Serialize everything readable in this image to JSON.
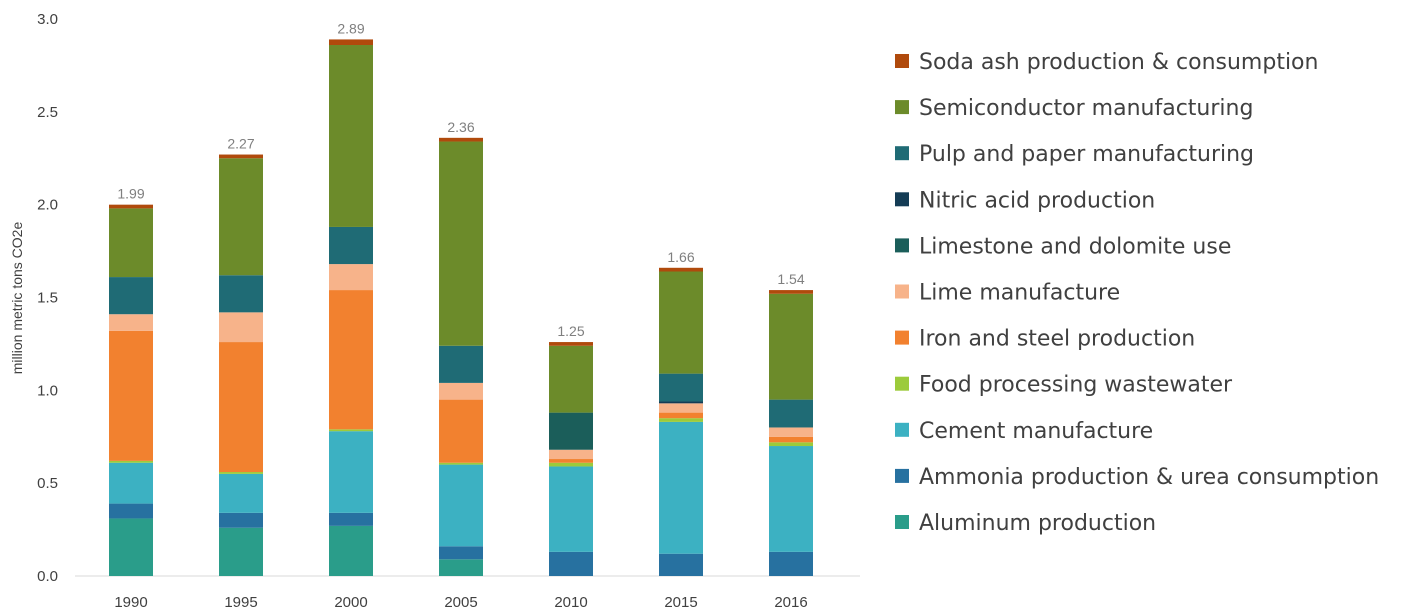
{
  "chart_data": {
    "type": "bar",
    "stacked": true,
    "title": "",
    "xlabel": "",
    "ylabel": "million metric tons CO2e",
    "ylim": [
      0,
      3.0
    ],
    "yticks": [
      "0.0",
      "0.5",
      "1.0",
      "1.5",
      "2.0",
      "2.5",
      "3.0"
    ],
    "grid": false,
    "legend_position": "right",
    "categories": [
      "1990",
      "1995",
      "2000",
      "2005",
      "2010",
      "2015",
      "2016"
    ],
    "totals": [
      1.99,
      2.27,
      2.89,
      2.36,
      1.25,
      1.66,
      1.54
    ],
    "total_labels": [
      "1.99",
      "2.27",
      "2.89",
      "2.36",
      "1.25",
      "1.66",
      "1.54"
    ],
    "series": [
      {
        "name": "Aluminum production",
        "color": "#2a9d8a",
        "values": [
          0.31,
          0.26,
          0.27,
          0.09,
          0.0,
          0.0,
          0.0
        ]
      },
      {
        "name": "Ammonia production & urea consumption",
        "color": "#2771a0",
        "values": [
          0.08,
          0.08,
          0.07,
          0.07,
          0.13,
          0.12,
          0.13
        ]
      },
      {
        "name": "Cement manufacture",
        "color": "#3cb1c2",
        "values": [
          0.22,
          0.21,
          0.44,
          0.44,
          0.46,
          0.71,
          0.57
        ]
      },
      {
        "name": "Food processing wastewater",
        "color": "#9ccb3b",
        "values": [
          0.01,
          0.01,
          0.01,
          0.01,
          0.02,
          0.02,
          0.02
        ]
      },
      {
        "name": "Iron and steel production",
        "color": "#f2812f",
        "values": [
          0.7,
          0.7,
          0.75,
          0.34,
          0.02,
          0.03,
          0.03
        ]
      },
      {
        "name": "Lime manufacture",
        "color": "#f7b38a",
        "values": [
          0.09,
          0.16,
          0.14,
          0.09,
          0.05,
          0.05,
          0.05
        ]
      },
      {
        "name": "Limestone and dolomite use",
        "color": "#1b5e5a",
        "values": [
          0.0,
          0.0,
          0.0,
          0.0,
          0.2,
          0.0,
          0.0
        ]
      },
      {
        "name": "Nitric acid production",
        "color": "#143c55",
        "values": [
          0.0,
          0.0,
          0.0,
          0.0,
          0.0,
          0.01,
          0.0
        ]
      },
      {
        "name": "Pulp and paper manufacturing",
        "color": "#1f6b75",
        "values": [
          0.2,
          0.2,
          0.2,
          0.2,
          0.0,
          0.15,
          0.15
        ]
      },
      {
        "name": "Semiconductor manufacturing",
        "color": "#6c8b2a",
        "values": [
          0.37,
          0.63,
          0.98,
          1.1,
          0.36,
          0.55,
          0.57
        ]
      },
      {
        "name": "Soda ash production & consumption",
        "color": "#b04a0c",
        "values": [
          0.02,
          0.02,
          0.03,
          0.02,
          0.02,
          0.02,
          0.02
        ]
      }
    ]
  }
}
